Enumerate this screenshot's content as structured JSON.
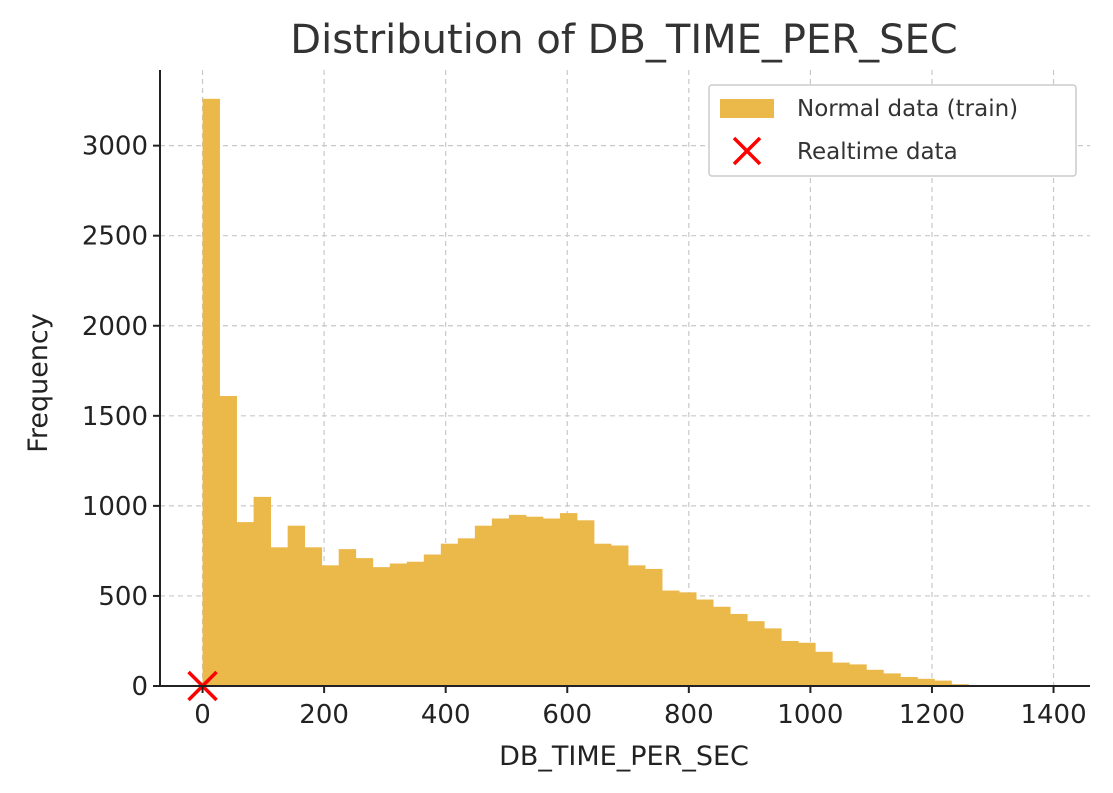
{
  "chart_data": {
    "type": "bar",
    "title": "Distribution of DB_TIME_PER_SEC",
    "xlabel": "DB_TIME_PER_SEC",
    "ylabel": "Frequency",
    "xlim": [
      -70,
      1460
    ],
    "ylim": [
      0,
      3420
    ],
    "x_ticks": [
      0,
      200,
      400,
      600,
      800,
      1000,
      1200,
      1400
    ],
    "y_ticks": [
      0,
      500,
      1000,
      1500,
      2000,
      2500,
      3000
    ],
    "grid": true,
    "legend_position": "top-right",
    "bin_start": 0,
    "bin_width": 28,
    "series": [
      {
        "name": "Normal data (train)",
        "kind": "histogram",
        "color": "#EBB94A",
        "values": [
          3260,
          1610,
          910,
          1050,
          770,
          890,
          770,
          670,
          760,
          710,
          660,
          680,
          690,
          730,
          790,
          820,
          890,
          930,
          950,
          940,
          930,
          960,
          920,
          790,
          780,
          670,
          650,
          530,
          520,
          480,
          440,
          400,
          360,
          320,
          250,
          240,
          190,
          130,
          120,
          90,
          70,
          50,
          40,
          30,
          10,
          5,
          2,
          1,
          0,
          0
        ]
      },
      {
        "name": "Realtime data",
        "kind": "scatter",
        "color": "#FF0000",
        "marker": "x",
        "points": [
          {
            "x": 0,
            "y": 0
          }
        ]
      }
    ]
  }
}
